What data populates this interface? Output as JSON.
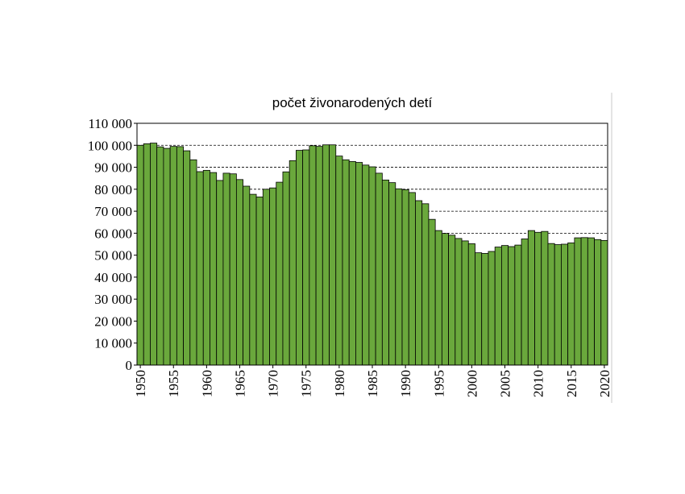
{
  "chart_data": {
    "type": "bar",
    "title": "počet živonarodených detí",
    "xlabel": "",
    "ylabel": "",
    "ylim": [
      0,
      110000
    ],
    "yticks": [
      0,
      10000,
      20000,
      30000,
      40000,
      50000,
      60000,
      70000,
      80000,
      90000,
      100000,
      110000
    ],
    "ytick_labels": [
      "0",
      "10 000",
      "20 000",
      "30 000",
      "40 000",
      "50 000",
      "60 000",
      "70 000",
      "80 000",
      "90 000",
      "100 000",
      "110 000"
    ],
    "xtick_labels": [
      "1950",
      "1955",
      "1960",
      "1965",
      "1970",
      "1975",
      "1980",
      "1985",
      "1990",
      "1995",
      "2000",
      "2005",
      "2010",
      "2015",
      "2020"
    ],
    "grid": "horizontal dashed",
    "bar_color": "#6aa83c",
    "categories": [
      1950,
      1951,
      1952,
      1953,
      1954,
      1955,
      1956,
      1957,
      1958,
      1959,
      1960,
      1961,
      1962,
      1963,
      1964,
      1965,
      1966,
      1967,
      1968,
      1969,
      1970,
      1971,
      1972,
      1973,
      1974,
      1975,
      1976,
      1977,
      1978,
      1979,
      1980,
      1981,
      1982,
      1983,
      1984,
      1985,
      1986,
      1987,
      1988,
      1989,
      1990,
      1991,
      1992,
      1993,
      1994,
      1995,
      1996,
      1997,
      1998,
      1999,
      2000,
      2001,
      2002,
      2003,
      2004,
      2005,
      2006,
      2007,
      2008,
      2009,
      2010,
      2011,
      2012,
      2013,
      2014,
      2015,
      2016,
      2017,
      2018,
      2019,
      2020
    ],
    "values": [
      100000,
      100700,
      101000,
      99300,
      98600,
      99500,
      99400,
      97500,
      93400,
      88000,
      88600,
      87600,
      84000,
      87300,
      87000,
      84400,
      81400,
      77700,
      76500,
      80000,
      80600,
      83200,
      87900,
      93000,
      97700,
      97900,
      99800,
      99500,
      100200,
      100200,
      95100,
      93400,
      92600,
      92200,
      91000,
      90200,
      87300,
      84200,
      83000,
      80200,
      79800,
      78500,
      74800,
      73400,
      66300,
      61200,
      59900,
      59100,
      57600,
      56500,
      55200,
      51100,
      50800,
      51700,
      53700,
      54400,
      53900,
      54600,
      57400,
      61200,
      60400,
      60800,
      55300,
      54800,
      55000,
      55600,
      57900,
      58000,
      57900,
      57100,
      56700
    ]
  }
}
